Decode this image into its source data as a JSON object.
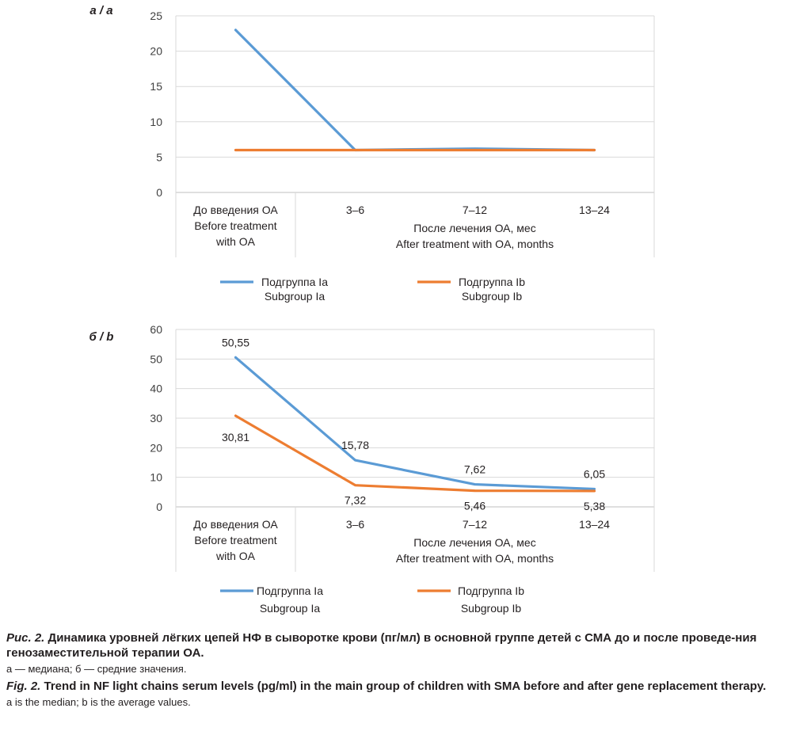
{
  "chart_data": [
    {
      "type": "line",
      "panel_label": "a / a",
      "ylim": [
        0,
        25
      ],
      "yticks": [
        "0",
        "5",
        "10",
        "15",
        "20",
        "25"
      ],
      "categories": [
        [
          "До введения ОА",
          "Before treatment",
          "with OA"
        ],
        [
          "3–6"
        ],
        [
          "7–12"
        ],
        [
          "13–24"
        ]
      ],
      "group_label": [
        "После лечения ОА, мес",
        "After treatment with OA, months"
      ],
      "series": [
        {
          "name": [
            "Подгруппа Ia",
            "Subgroup Ia"
          ],
          "color": "#5b9bd5",
          "values": [
            23,
            6,
            6.2,
            6
          ],
          "labels": []
        },
        {
          "name": [
            "Подгруппа Ib",
            "Subgroup Ib"
          ],
          "color": "#ed7d31",
          "values": [
            6,
            6,
            6,
            6
          ],
          "labels": []
        }
      ],
      "grid": true,
      "legend": "bottom"
    },
    {
      "type": "line",
      "panel_label": "б / b",
      "ylim": [
        0,
        60
      ],
      "yticks": [
        "0",
        "10",
        "20",
        "30",
        "40",
        "50",
        "60"
      ],
      "categories": [
        [
          "До введения ОА",
          "Before treatment",
          "with OA"
        ],
        [
          "3–6"
        ],
        [
          "7–12"
        ],
        [
          "13–24"
        ]
      ],
      "group_label": [
        "После лечения ОА, мес",
        "After treatment with OA, months"
      ],
      "series": [
        {
          "name": [
            "Подгруппа Ia",
            "Subgroup Ia"
          ],
          "color": "#5b9bd5",
          "values": [
            50.55,
            15.78,
            7.62,
            6.05
          ],
          "labels": [
            "50,55",
            "15,78",
            "7,62",
            "6,05"
          ]
        },
        {
          "name": [
            "Подгруппа Ib",
            "Subgroup Ib"
          ],
          "color": "#ed7d31",
          "values": [
            30.81,
            7.32,
            5.46,
            5.38
          ],
          "labels": [
            "30,81",
            "7,32",
            "5,46",
            "5,38"
          ]
        }
      ],
      "grid": true,
      "legend": "bottom"
    }
  ],
  "caption": {
    "ru_lead": "Рис. 2.",
    "ru_title": " Динамика уровней лёгких цепей НФ в сыворотке крови (пг/мл) в основной группе детей с СМА до и после проведе-ния генозаместительной терапии ОА.",
    "ru_note": "а — медиана; б — средние значения.",
    "en_lead": "Fig. 2.",
    "en_title": " Trend in NF light chains serum levels (pg/ml) in the main group of children with SMA before and after gene replacement therapy.",
    "en_note": "a is the median; b is the average values."
  }
}
